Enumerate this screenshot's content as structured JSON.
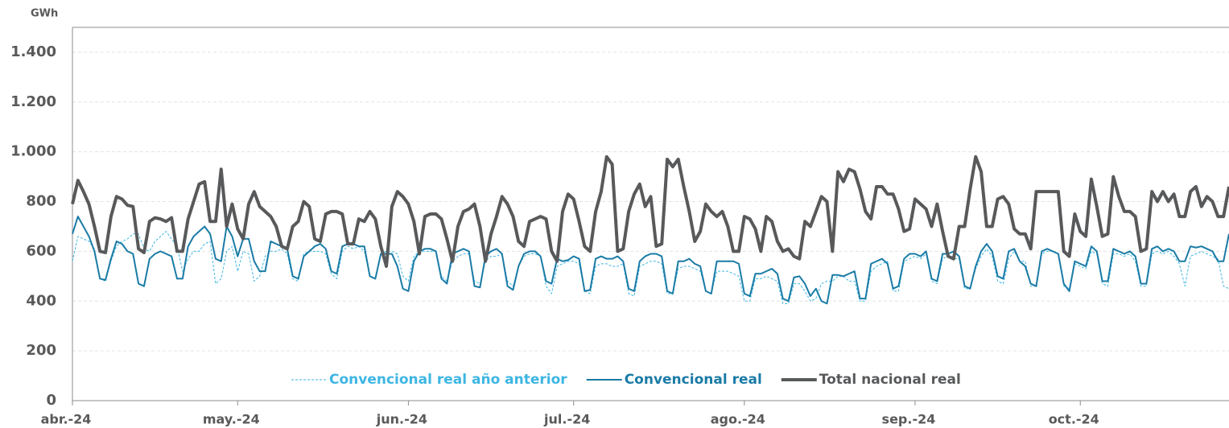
{
  "chart_data": {
    "type": "line",
    "y_label": "GWh",
    "categories": [
      "abr.-24",
      null,
      null,
      null,
      null,
      null,
      null,
      null,
      null,
      null,
      null,
      null,
      null,
      null,
      null,
      null,
      null,
      null,
      null,
      null,
      null,
      null,
      null,
      null,
      null,
      null,
      null,
      null,
      null,
      null,
      "may.-24",
      null,
      null,
      null,
      null,
      null,
      null,
      null,
      null,
      null,
      null,
      null,
      null,
      null,
      null,
      null,
      null,
      null,
      null,
      null,
      null,
      null,
      null,
      null,
      null,
      null,
      null,
      null,
      null,
      null,
      null,
      "jun.-24",
      null,
      null,
      null,
      null,
      null,
      null,
      null,
      null,
      null,
      null,
      null,
      null,
      null,
      null,
      null,
      null,
      null,
      null,
      null,
      null,
      null,
      null,
      null,
      null,
      null,
      null,
      null,
      null,
      null,
      "jul.-24",
      null,
      null,
      null,
      null,
      null,
      null,
      null,
      null,
      null,
      null,
      null,
      null,
      null,
      null,
      null,
      null,
      null,
      null,
      null,
      null,
      null,
      null,
      null,
      null,
      null,
      null,
      null,
      null,
      null,
      null,
      "ago.-24",
      null,
      null,
      null,
      null,
      null,
      null,
      null,
      null,
      null,
      null,
      null,
      null,
      null,
      null,
      null,
      null,
      null,
      null,
      null,
      null,
      null,
      null,
      null,
      null,
      null,
      null,
      null,
      null,
      null,
      null,
      "sep.-24",
      null,
      null,
      null,
      null,
      null,
      null,
      null,
      null,
      null,
      null,
      null,
      null,
      null,
      null,
      null,
      null,
      null,
      null,
      null,
      null,
      null,
      null,
      null,
      null,
      null,
      null,
      null,
      null,
      null,
      "oct.-24",
      null,
      null,
      null,
      null,
      null,
      null,
      null,
      null,
      null,
      null,
      null,
      null,
      null,
      null,
      null,
      null,
      null,
      null,
      null,
      null,
      null,
      null,
      null,
      null,
      null,
      null,
      null
    ],
    "ylim": [
      0,
      1500
    ],
    "yticks": [
      0,
      200,
      400,
      600,
      800,
      {
        "value": 1000,
        "label": "1.000"
      },
      {
        "value": 1200,
        "label": "1.200"
      },
      {
        "value": 1400,
        "label": "1.400"
      }
    ],
    "grid": true,
    "legend": "bottom",
    "series": [
      {
        "name": "Convencional real año anterior",
        "color": "#3db6e3",
        "dashed": true,
        "values": [
          560,
          660,
          650,
          640,
          610,
          490,
          480,
          560,
          620,
          640,
          650,
          670,
          670,
          610,
          600,
          640,
          660,
          680,
          650,
          620,
          520,
          570,
          600,
          600,
          630,
          640,
          470,
          490,
          600,
          620,
          520,
          600,
          590,
          480,
          500,
          580,
          600,
          600,
          610,
          590,
          490,
          480,
          590,
          600,
          600,
          600,
          590,
          510,
          490,
          600,
          620,
          610,
          620,
          600,
          500,
          490,
          590,
          600,
          600,
          590,
          500,
          480,
          580,
          600,
          600,
          600,
          600,
          500,
          480,
          560,
          580,
          590,
          590,
          480,
          470,
          560,
          580,
          580,
          590,
          480,
          460,
          540,
          580,
          590,
          590,
          580,
          460,
          430,
          540,
          550,
          560,
          560,
          550,
          440,
          430,
          540,
          550,
          550,
          540,
          540,
          550,
          430,
          420,
          540,
          550,
          560,
          560,
          550,
          430,
          430,
          530,
          540,
          540,
          530,
          520,
          440,
          430,
          520,
          520,
          520,
          510,
          500,
          400,
          400,
          490,
          490,
          500,
          490,
          480,
          390,
          390,
          470,
          470,
          440,
          400,
          410,
          470,
          480,
          480,
          500,
          500,
          480,
          480,
          400,
          400,
          520,
          540,
          550,
          560,
          440,
          440,
          560,
          570,
          580,
          570,
          590,
          480,
          470,
          570,
          580,
          570,
          570,
          450,
          450,
          530,
          580,
          610,
          580,
          480,
          470,
          570,
          600,
          560,
          560,
          460,
          460,
          590,
          600,
          600,
          590,
          460,
          450,
          550,
          540,
          530,
          600,
          590,
          470,
          460,
          590,
          590,
          580,
          590,
          560,
          460,
          460,
          590,
          600,
          590,
          600,
          580,
          550,
          460,
          580,
          590,
          600,
          590,
          580,
          570,
          460,
          450
        ]
      },
      {
        "name": "Convencional real",
        "color": "#1a7ba6",
        "dashed": false,
        "values": [
          670,
          740,
          700,
          660,
          600,
          490,
          485,
          570,
          640,
          630,
          600,
          590,
          470,
          460,
          570,
          590,
          600,
          590,
          580,
          490,
          490,
          620,
          660,
          680,
          700,
          670,
          570,
          560,
          700,
          660,
          580,
          650,
          650,
          560,
          520,
          520,
          640,
          630,
          620,
          610,
          500,
          490,
          580,
          600,
          620,
          630,
          610,
          520,
          510,
          620,
          630,
          630,
          620,
          620,
          500,
          490,
          590,
          590,
          590,
          540,
          450,
          440,
          560,
          600,
          610,
          610,
          600,
          490,
          470,
          590,
          600,
          610,
          600,
          460,
          455,
          580,
          600,
          610,
          590,
          460,
          445,
          540,
          590,
          600,
          600,
          580,
          480,
          470,
          570,
          560,
          565,
          580,
          570,
          440,
          445,
          570,
          580,
          570,
          570,
          580,
          560,
          450,
          440,
          560,
          580,
          590,
          590,
          580,
          440,
          430,
          560,
          560,
          570,
          550,
          540,
          440,
          430,
          560,
          560,
          560,
          560,
          550,
          430,
          420,
          510,
          510,
          520,
          530,
          510,
          410,
          400,
          495,
          500,
          470,
          420,
          450,
          400,
          390,
          505,
          505,
          500,
          510,
          520,
          410,
          410,
          550,
          560,
          570,
          550,
          450,
          460,
          570,
          590,
          590,
          580,
          600,
          490,
          480,
          590,
          590,
          600,
          580,
          460,
          450,
          540,
          600,
          630,
          600,
          500,
          490,
          600,
          610,
          560,
          540,
          470,
          460,
          600,
          610,
          600,
          590,
          470,
          440,
          560,
          550,
          540,
          620,
          600,
          480,
          480,
          610,
          600,
          590,
          600,
          580,
          470,
          470,
          610,
          620,
          600,
          610,
          600,
          560,
          560,
          620,
          615,
          620,
          610,
          600,
          560,
          560,
          670
        ]
      },
      {
        "name": "Total nacional real",
        "color": "#58595b",
        "dashed": false,
        "values": [
          790,
          885,
          840,
          790,
          700,
          600,
          595,
          740,
          820,
          810,
          785,
          780,
          610,
          595,
          720,
          735,
          730,
          720,
          735,
          600,
          600,
          730,
          800,
          870,
          880,
          720,
          720,
          930,
          700,
          790,
          690,
          650,
          790,
          840,
          780,
          760,
          740,
          700,
          620,
          610,
          700,
          720,
          800,
          780,
          650,
          640,
          750,
          760,
          760,
          750,
          630,
          630,
          730,
          720,
          760,
          730,
          620,
          540,
          780,
          840,
          820,
          790,
          720,
          590,
          740,
          750,
          750,
          730,
          650,
          560,
          700,
          760,
          770,
          790,
          700,
          560,
          670,
          740,
          820,
          790,
          740,
          640,
          620,
          720,
          730,
          740,
          730,
          600,
          560,
          760,
          830,
          810,
          720,
          620,
          600,
          760,
          840,
          980,
          950,
          600,
          610,
          760,
          830,
          870,
          780,
          820,
          620,
          630,
          970,
          940,
          970,
          860,
          760,
          640,
          680,
          790,
          760,
          740,
          760,
          700,
          600,
          600,
          740,
          730,
          690,
          600,
          740,
          720,
          640,
          600,
          610,
          580,
          570,
          720,
          700,
          760,
          820,
          800,
          600,
          920,
          880,
          930,
          920,
          850,
          760,
          730,
          860,
          860,
          830,
          830,
          770,
          680,
          690,
          810,
          790,
          770,
          700,
          790,
          680,
          580,
          570,
          700,
          700,
          850,
          980,
          920,
          700,
          700,
          810,
          820,
          790,
          690,
          670,
          670,
          610,
          840,
          840,
          840,
          840,
          840,
          600,
          580,
          750,
          680,
          660,
          890,
          780,
          660,
          670,
          900,
          820,
          760,
          760,
          740,
          600,
          610,
          840,
          800,
          840,
          800,
          830,
          740,
          740,
          840,
          860,
          780,
          820,
          800,
          740,
          740,
          860
        ]
      }
    ]
  }
}
